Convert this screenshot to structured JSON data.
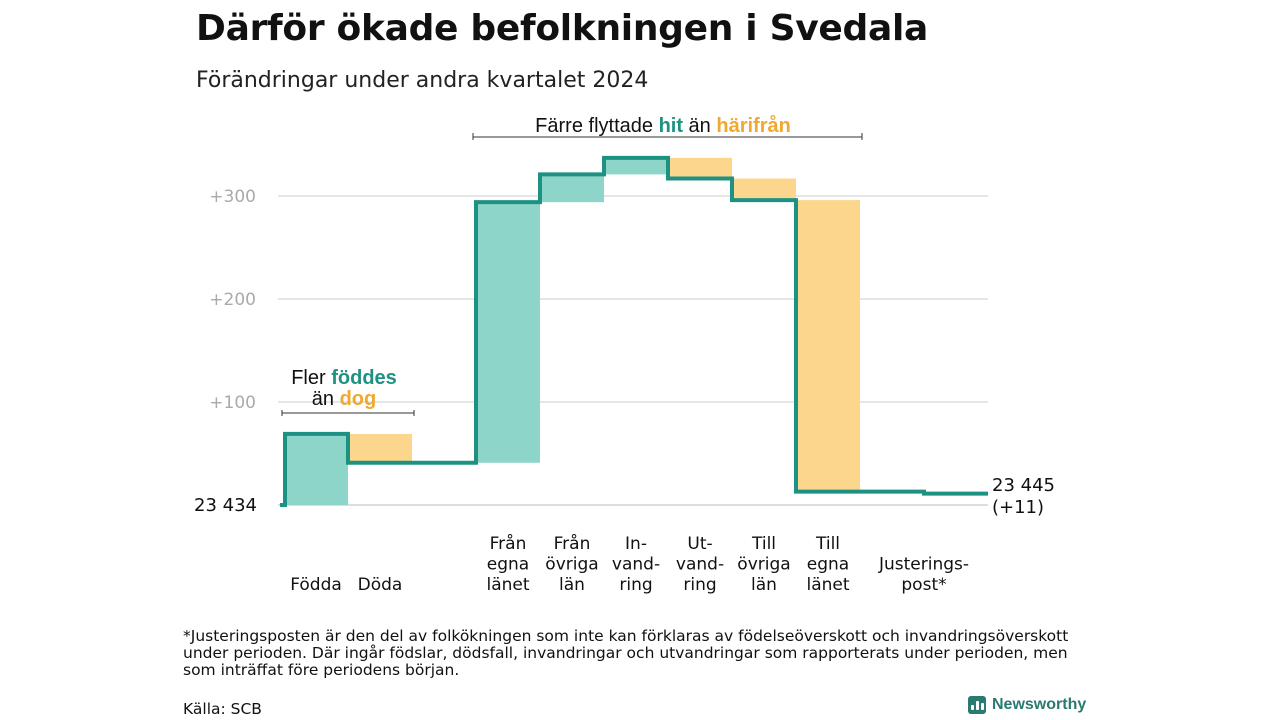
{
  "header": {
    "title": "Därför ökade befolkningen i Svedala",
    "subtitle": "Förändringar under andra kvartalet 2024"
  },
  "chart_data": {
    "type": "waterfall",
    "start_value": "23  434",
    "end_value": "23 445",
    "end_change": "(+11)",
    "ylim": [
      0,
      350
    ],
    "yticks": [
      {
        "value": 100,
        "label": "+100"
      },
      {
        "value": 200,
        "label": "+200"
      },
      {
        "value": 300,
        "label": "+300"
      }
    ],
    "steps": [
      {
        "category": "Födda",
        "label_lines": [
          "Födda"
        ],
        "delta": 69,
        "kind": "in"
      },
      {
        "category": "Döda",
        "label_lines": [
          "Döda"
        ],
        "delta": -28,
        "kind": "out"
      },
      {
        "category": "Från egna länet",
        "label_lines": [
          "Från",
          "egna",
          "länet"
        ],
        "delta": 253,
        "kind": "in"
      },
      {
        "category": "Från övriga län",
        "label_lines": [
          "Från",
          "övriga",
          "län"
        ],
        "delta": 27,
        "kind": "in"
      },
      {
        "category": "Invandring",
        "label_lines": [
          "In-",
          "vand-",
          "ring"
        ],
        "delta": 16,
        "kind": "in"
      },
      {
        "category": "Utvandring",
        "label_lines": [
          "Ut-",
          "vand-",
          "ring"
        ],
        "delta": -20,
        "kind": "out"
      },
      {
        "category": "Till övriga län",
        "label_lines": [
          "Till",
          "övriga",
          "län"
        ],
        "delta": -21,
        "kind": "out"
      },
      {
        "category": "Till egna länet",
        "label_lines": [
          "Till",
          "egna",
          "länet"
        ],
        "delta": -283,
        "kind": "out"
      },
      {
        "category": "Justeringspost*",
        "label_lines": [
          "Justerings-",
          "post*"
        ],
        "delta": -2,
        "kind": "adjust"
      }
    ],
    "annotations": [
      {
        "parts": [
          "Fler ",
          "föddes",
          "än ",
          "dog"
        ]
      },
      {
        "parts": [
          "Färre flyttade ",
          "hit",
          " än ",
          "härifrån"
        ]
      }
    ],
    "colors": {
      "in_fill": "#8dd5c9",
      "out_fill": "#fcd68d",
      "line": "#1e9282",
      "accent_in": "#1e9282",
      "accent_out": "#f0a830",
      "grid": "#dddddd",
      "axis_text": "#aaaaaa"
    }
  },
  "footnote": "*Justeringsposten är den del av folkökningen som inte kan förklaras av födelseöverskott och invandringsöverskott under perioden. Där ingår födslar, dödsfall, invandringar och utvandringar som rapporterats under perioden, men som inträffat före periodens början.",
  "source": "Källa: SCB",
  "brand": {
    "name": "Newsworthy",
    "icon": "bar-chart-icon"
  }
}
